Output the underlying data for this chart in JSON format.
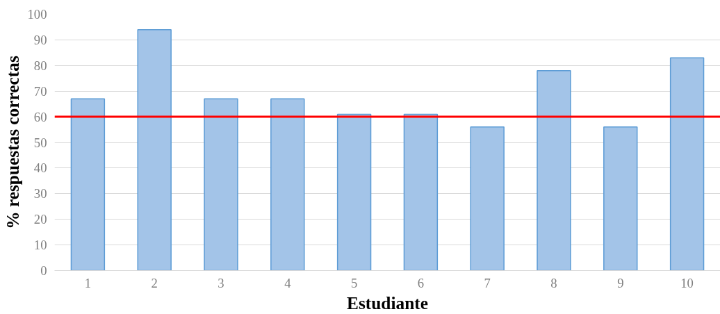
{
  "chart_data": {
    "type": "bar",
    "xlabel": "Estudiante",
    "ylabel": "% respuestas correctas",
    "categories": [
      "1",
      "2",
      "3",
      "4",
      "5",
      "6",
      "7",
      "8",
      "9",
      "10"
    ],
    "values": [
      67,
      94,
      67,
      67,
      61,
      61,
      56,
      78,
      56,
      83
    ],
    "color": "#a3c4e8",
    "ylim": [
      0,
      100
    ],
    "yticks": [
      0,
      10,
      20,
      30,
      40,
      50,
      60,
      70,
      80,
      90,
      100
    ],
    "grid": "y",
    "ref_lines": [
      {
        "axis": "y",
        "value": 60,
        "color": "#ff0000",
        "line_style": "solid"
      }
    ]
  }
}
